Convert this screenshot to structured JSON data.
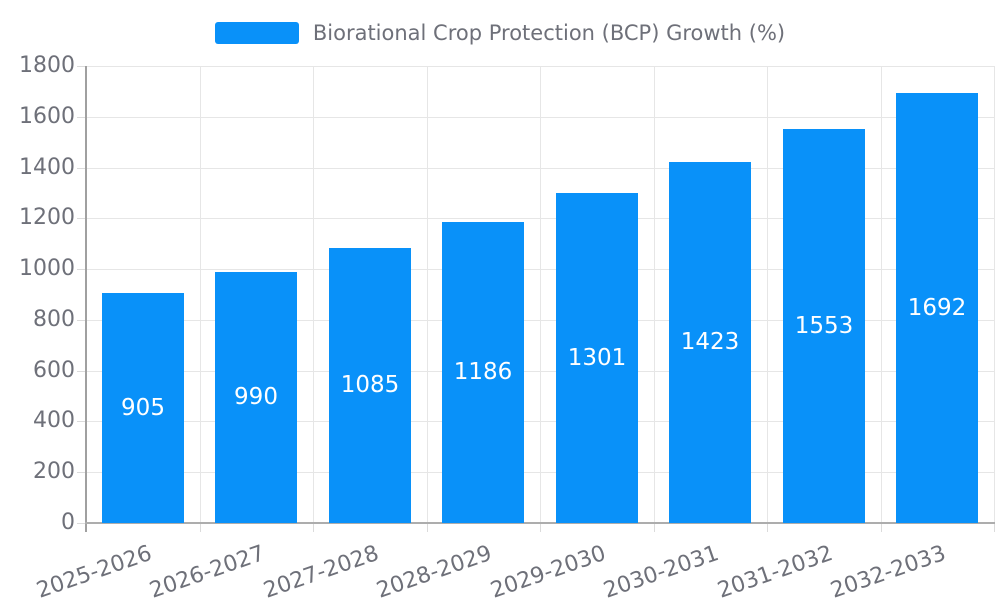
{
  "chart_data": {
    "type": "bar",
    "title": "",
    "legend": "Biorational Crop Protection (BCP) Growth (%)",
    "legend_position": "top-center",
    "categories": [
      "2025-2026",
      "2026-2027",
      "2027-2028",
      "2028-2029",
      "2029-2030",
      "2030-2031",
      "2031-2032",
      "2032-2033"
    ],
    "values": [
      905,
      990,
      1085,
      1186,
      1301,
      1423,
      1553,
      1692
    ],
    "xlabel": "",
    "ylabel": "",
    "ylim": [
      0,
      1800
    ],
    "yticks": [
      0,
      200,
      400,
      600,
      800,
      1000,
      1200,
      1400,
      1600,
      1800
    ],
    "grid": true,
    "value_label_position": "inside-center",
    "x_label_rotation_deg": -19,
    "colors": {
      "bar": "#0991F9",
      "axis_label": "#6E7079",
      "value_label": "#FFFFFF",
      "gridline": "#E6E6E6",
      "axis_line": "#A6A6A6",
      "background": "#FFFFFF"
    }
  }
}
